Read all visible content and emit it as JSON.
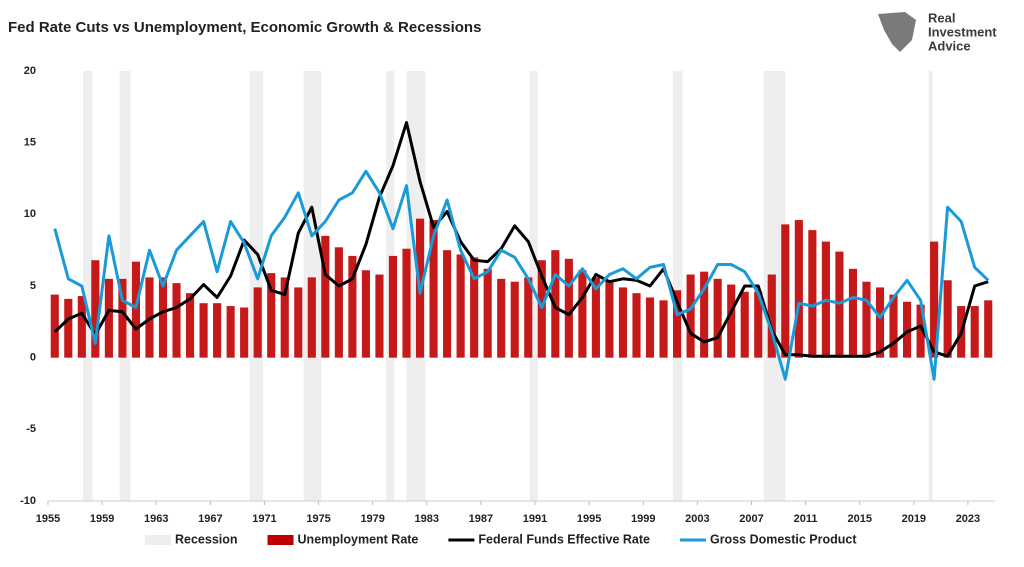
{
  "chart_data": {
    "type": "line",
    "title": "Fed Rate Cuts vs Unemployment, Economic Growth & Recessions",
    "x": [
      1955,
      1956,
      1957,
      1958,
      1959,
      1960,
      1961,
      1962,
      1963,
      1964,
      1965,
      1966,
      1967,
      1968,
      1969,
      1970,
      1971,
      1972,
      1973,
      1974,
      1975,
      1976,
      1977,
      1978,
      1979,
      1980,
      1981,
      1982,
      1983,
      1984,
      1985,
      1986,
      1987,
      1988,
      1989,
      1990,
      1991,
      1992,
      1993,
      1994,
      1995,
      1996,
      1997,
      1998,
      1999,
      2000,
      2001,
      2002,
      2003,
      2004,
      2005,
      2006,
      2007,
      2008,
      2009,
      2010,
      2011,
      2012,
      2013,
      2014,
      2015,
      2016,
      2017,
      2018,
      2019,
      2020,
      2021,
      2022,
      2023,
      2024
    ],
    "series": [
      {
        "name": "Unemployment Rate",
        "type": "bar",
        "color": "#c00000",
        "values": [
          4.4,
          4.1,
          4.3,
          6.8,
          5.5,
          5.5,
          6.7,
          5.6,
          5.6,
          5.2,
          4.5,
          3.8,
          3.8,
          3.6,
          3.5,
          4.9,
          5.9,
          5.6,
          4.9,
          5.6,
          8.5,
          7.7,
          7.1,
          6.1,
          5.8,
          7.1,
          7.6,
          9.7,
          9.6,
          7.5,
          7.2,
          7.0,
          6.2,
          5.5,
          5.3,
          5.6,
          6.8,
          7.5,
          6.9,
          6.1,
          5.6,
          5.4,
          4.9,
          4.5,
          4.2,
          4.0,
          4.7,
          5.8,
          6.0,
          5.5,
          5.1,
          4.6,
          4.6,
          5.8,
          9.3,
          9.6,
          8.9,
          8.1,
          7.4,
          6.2,
          5.3,
          4.9,
          4.4,
          3.9,
          3.7,
          8.1,
          5.4,
          3.6,
          3.6,
          4.0
        ]
      },
      {
        "name": "Federal Funds Effective Rate",
        "type": "line",
        "color": "#000000",
        "values": [
          1.8,
          2.7,
          3.1,
          1.6,
          3.3,
          3.2,
          2.0,
          2.7,
          3.2,
          3.5,
          4.1,
          5.1,
          4.2,
          5.7,
          8.2,
          7.2,
          4.7,
          4.4,
          8.7,
          10.5,
          5.8,
          5.0,
          5.5,
          7.9,
          11.2,
          13.4,
          16.4,
          12.3,
          9.1,
          10.2,
          8.1,
          6.8,
          6.7,
          7.6,
          9.2,
          8.1,
          5.7,
          3.5,
          3.0,
          4.2,
          5.8,
          5.3,
          5.5,
          5.4,
          5.0,
          6.2,
          3.9,
          1.7,
          1.1,
          1.4,
          3.2,
          5.0,
          5.0,
          1.9,
          0.2,
          0.2,
          0.1,
          0.1,
          0.1,
          0.1,
          0.1,
          0.4,
          1.0,
          1.8,
          2.2,
          0.4,
          0.1,
          1.7,
          5.0,
          5.3
        ]
      },
      {
        "name": "Gross Domestic Product",
        "type": "line",
        "color": "#1a9bd7",
        "values": [
          9.0,
          5.5,
          5.0,
          1.0,
          8.5,
          4.0,
          3.5,
          7.5,
          5.0,
          7.5,
          8.5,
          9.5,
          6.0,
          9.5,
          8.0,
          5.5,
          8.5,
          9.8,
          11.5,
          8.5,
          9.5,
          11.0,
          11.5,
          13.0,
          11.5,
          9.0,
          12.0,
          4.5,
          8.5,
          11.0,
          7.5,
          5.5,
          6.0,
          7.5,
          7.0,
          5.5,
          3.5,
          5.8,
          5.0,
          6.2,
          4.8,
          5.8,
          6.2,
          5.5,
          6.3,
          6.5,
          3.0,
          3.4,
          4.8,
          6.5,
          6.5,
          6.0,
          4.5,
          1.8,
          -1.5,
          3.8,
          3.6,
          4.0,
          3.8,
          4.2,
          4.0,
          2.8,
          4.2,
          5.4,
          4.0,
          -1.5,
          10.5,
          9.5,
          6.3,
          5.4
        ]
      }
    ],
    "recessions": {
      "name": "Recession",
      "color": "#eeeeee",
      "periods": [
        [
          1957.6,
          1958.3
        ],
        [
          1960.3,
          1961.1
        ],
        [
          1969.9,
          1970.9
        ],
        [
          1973.9,
          1975.2
        ],
        [
          1980.0,
          1980.6
        ],
        [
          1981.5,
          1982.9
        ],
        [
          1990.6,
          1991.2
        ],
        [
          2001.2,
          2001.9
        ],
        [
          2007.9,
          2009.5
        ],
        [
          2020.1,
          2020.4
        ]
      ]
    },
    "xlim": [
      1955,
      2025
    ],
    "xticks": [
      1955,
      1959,
      1963,
      1967,
      1971,
      1975,
      1979,
      1983,
      1987,
      1991,
      1995,
      1999,
      2003,
      2007,
      2011,
      2015,
      2019,
      2023
    ],
    "ylim": [
      -10,
      20
    ],
    "yticks": [
      -10,
      -5,
      0,
      5,
      10,
      15,
      20
    ],
    "grid": false,
    "legend": "bottom"
  },
  "branding": {
    "lines": [
      "Real",
      "Investment",
      "Advice"
    ]
  }
}
